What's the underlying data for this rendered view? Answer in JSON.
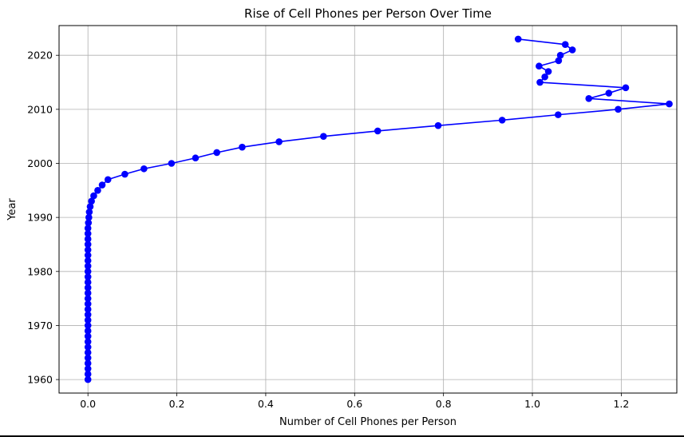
{
  "chart_data": {
    "type": "line",
    "title": "Rise of Cell Phones per Person Over Time",
    "xlabel": "Number of Cell Phones per Person",
    "ylabel": "Year",
    "xlim": [
      -0.065,
      1.325
    ],
    "ylim": [
      1957.5,
      2025.5
    ],
    "xticks": [
      0.0,
      0.2,
      0.4,
      0.6,
      0.8,
      1.0,
      1.2
    ],
    "xtick_labels": [
      "0.0",
      "0.2",
      "0.4",
      "0.6",
      "0.8",
      "1.0",
      "1.2"
    ],
    "yticks": [
      1960,
      1970,
      1980,
      1990,
      2000,
      2010,
      2020
    ],
    "ytick_labels": [
      "1960",
      "1970",
      "1980",
      "1990",
      "2000",
      "2010",
      "2020"
    ],
    "grid": true,
    "marker": "circle",
    "color": "#0000ff",
    "series": [
      {
        "x": [
          0.0,
          0.0,
          0.0,
          0.0,
          0.0,
          0.0,
          0.0,
          0.0,
          0.0,
          0.0,
          0.0,
          0.0,
          0.0,
          0.0,
          0.0,
          0.0,
          0.0,
          0.0,
          0.0,
          0.0,
          0.0,
          0.0,
          0.0,
          0.0,
          0.0,
          0.0,
          0.0,
          0.0,
          0.0,
          0.001,
          0.002,
          0.003,
          0.005,
          0.008,
          0.013,
          0.022,
          0.032,
          0.045,
          0.083,
          0.126,
          0.188,
          0.242,
          0.29,
          0.347,
          0.43,
          0.53,
          0.652,
          0.788,
          0.932,
          1.058,
          1.193,
          1.308,
          1.127,
          1.172,
          1.21,
          1.017,
          1.028,
          1.036,
          1.015,
          1.059,
          1.063,
          1.09,
          1.074,
          0.968
        ],
        "y": [
          1960,
          1961,
          1962,
          1963,
          1964,
          1965,
          1966,
          1967,
          1968,
          1969,
          1970,
          1971,
          1972,
          1973,
          1974,
          1975,
          1976,
          1977,
          1978,
          1979,
          1980,
          1981,
          1982,
          1983,
          1984,
          1985,
          1986,
          1987,
          1988,
          1989,
          1990,
          1991,
          1992,
          1993,
          1994,
          1995,
          1996,
          1997,
          1998,
          1999,
          2000,
          2001,
          2002,
          2003,
          2004,
          2005,
          2006,
          2007,
          2008,
          2009,
          2010,
          2011,
          2012,
          2013,
          2014,
          2015,
          2016,
          2017,
          2018,
          2019,
          2020,
          2021,
          2022,
          2023
        ]
      }
    ]
  }
}
